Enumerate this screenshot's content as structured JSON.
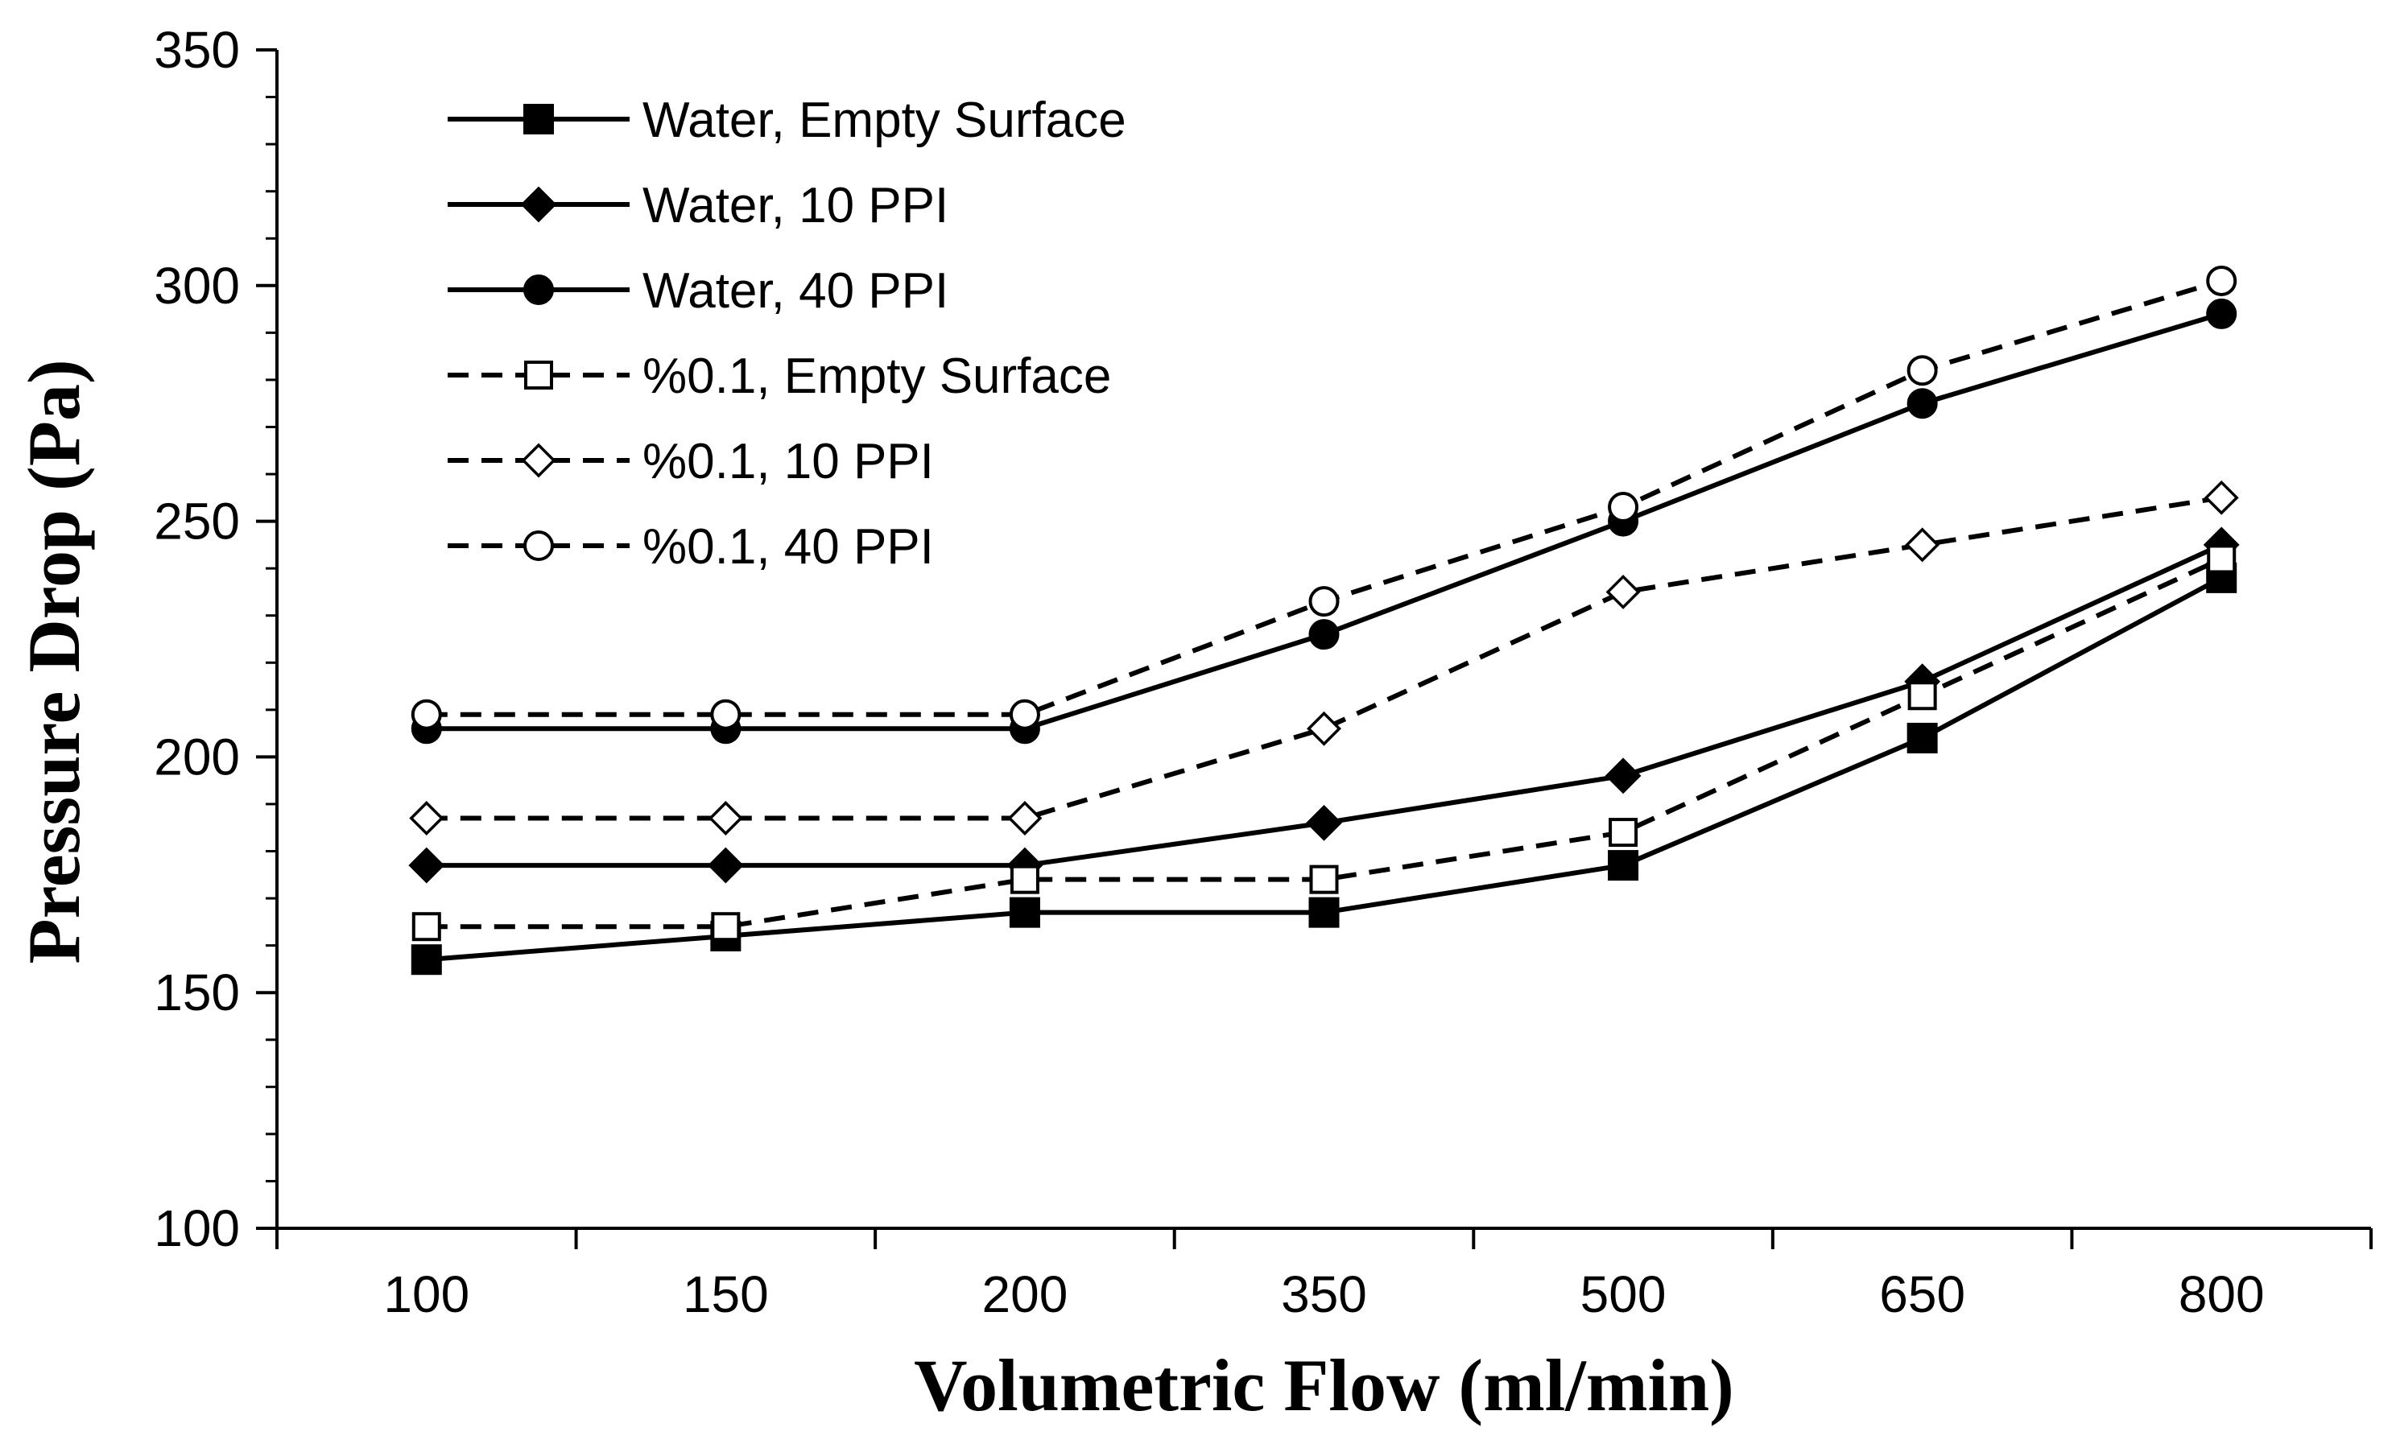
{
  "chart_data": {
    "type": "line",
    "title": "",
    "xlabel": "Volumetric Flow (ml/min)",
    "ylabel": "Pressure Drop (Pa)",
    "categories": [
      "100",
      "150",
      "200",
      "350",
      "500",
      "650",
      "800"
    ],
    "ylim": [
      100,
      350
    ],
    "yticks": [
      "100",
      "150",
      "200",
      "250",
      "300",
      "350"
    ],
    "grid": false,
    "legend_position": "top-left",
    "series": [
      {
        "name": "Water, Empty Surface",
        "marker": "filled-square",
        "line": "solid",
        "values": [
          157,
          162,
          167,
          167,
          177,
          204,
          238
        ]
      },
      {
        "name": "Water, 10 PPI",
        "marker": "filled-diamond",
        "line": "solid",
        "values": [
          177,
          177,
          177,
          186,
          196,
          216,
          245
        ]
      },
      {
        "name": "Water, 40 PPI",
        "marker": "filled-circle",
        "line": "solid",
        "values": [
          206,
          206,
          206,
          226,
          250,
          275,
          294
        ]
      },
      {
        "name": "%0.1, Empty Surface",
        "marker": "open-square",
        "line": "dashed",
        "values": [
          164,
          164,
          174,
          174,
          184,
          213,
          242
        ]
      },
      {
        "name": "%0.1, 10 PPI",
        "marker": "open-diamond",
        "line": "dashed",
        "values": [
          187,
          187,
          187,
          206,
          235,
          245,
          255
        ]
      },
      {
        "name": "%0.1, 40 PPI",
        "marker": "open-circle",
        "line": "dashed",
        "values": [
          209,
          209,
          209,
          233,
          253,
          282,
          301
        ]
      }
    ]
  }
}
